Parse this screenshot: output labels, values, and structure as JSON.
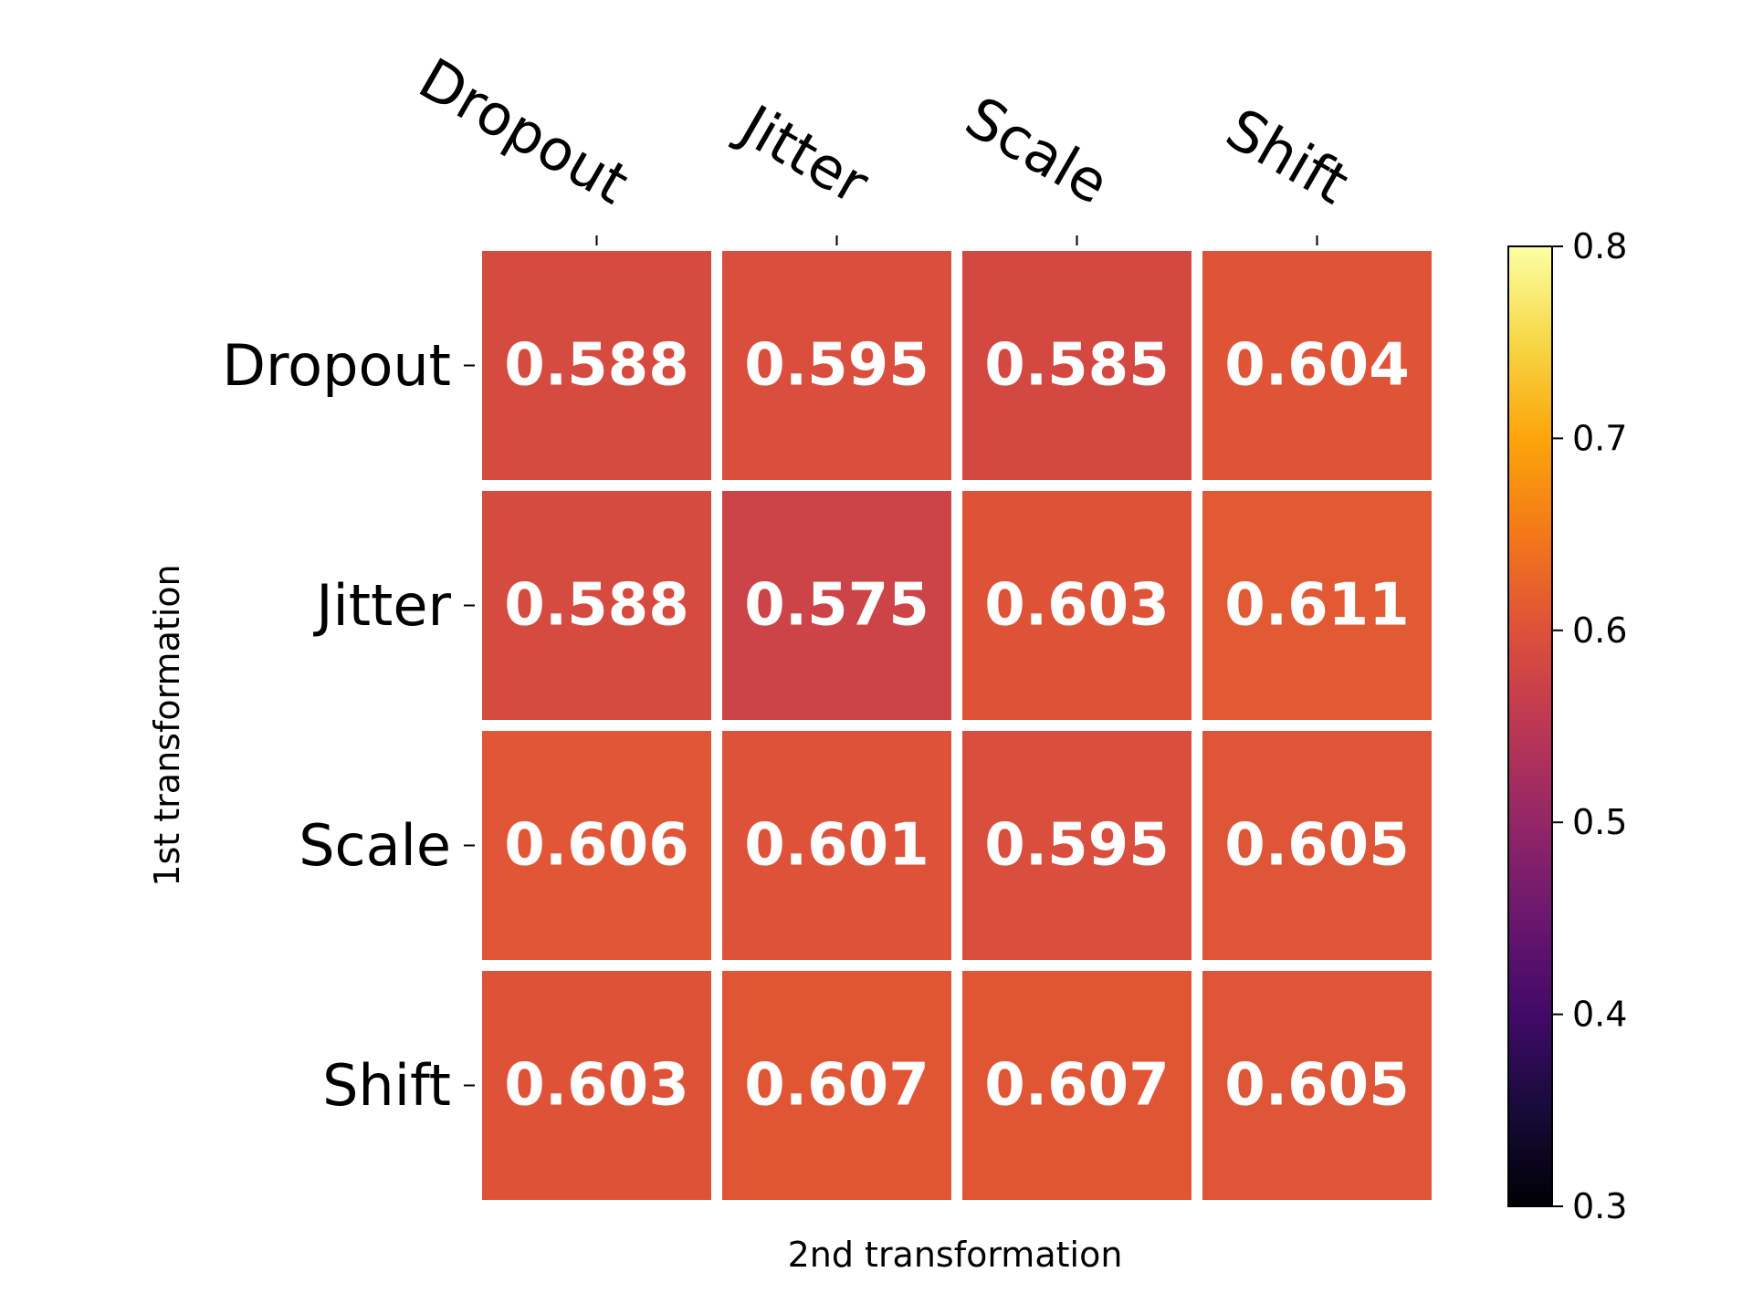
{
  "chart_data": {
    "type": "heatmap",
    "xlabel": "2nd transformation",
    "ylabel": "1st transformation",
    "x_categories": [
      "Dropout",
      "Jitter",
      "Scale",
      "Shift"
    ],
    "y_categories": [
      "Dropout",
      "Jitter",
      "Scale",
      "Shift"
    ],
    "values": [
      [
        0.588,
        0.595,
        0.585,
        0.604
      ],
      [
        0.588,
        0.575,
        0.603,
        0.611
      ],
      [
        0.606,
        0.601,
        0.595,
        0.605
      ],
      [
        0.603,
        0.607,
        0.607,
        0.605
      ]
    ],
    "value_labels": [
      [
        "0.588",
        "0.595",
        "0.585",
        "0.604"
      ],
      [
        "0.588",
        "0.575",
        "0.603",
        "0.611"
      ],
      [
        "0.606",
        "0.601",
        "0.595",
        "0.605"
      ],
      [
        "0.603",
        "0.607",
        "0.607",
        "0.605"
      ]
    ],
    "colormap": "inferno",
    "colorbar": {
      "range": [
        0.3,
        0.8
      ],
      "ticks": [
        0.3,
        0.4,
        0.5,
        0.6,
        0.7,
        0.8
      ],
      "tick_labels": [
        "0.3",
        "0.4",
        "0.5",
        "0.6",
        "0.7",
        "0.8"
      ]
    },
    "x_tick_position": "top",
    "grid": false
  }
}
